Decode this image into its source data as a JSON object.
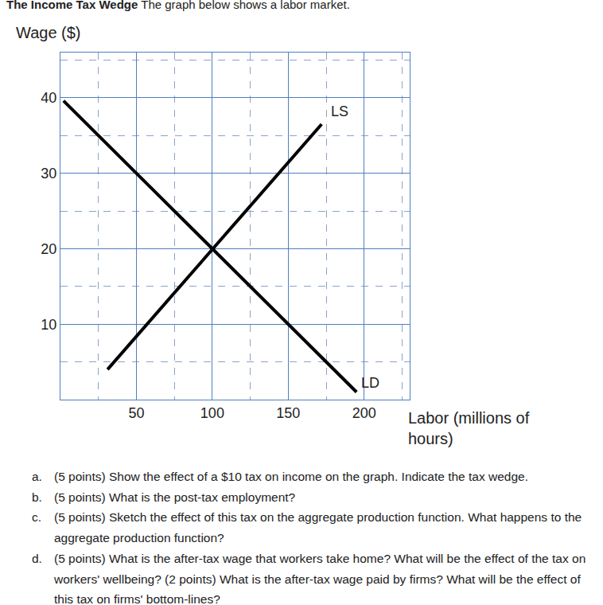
{
  "header": {
    "title": "The Income Tax Wedge",
    "text": "The graph below shows a labor market."
  },
  "chart_data": {
    "type": "line",
    "y_label": "Wage ($)",
    "x_label": "Labor (millions of hours)",
    "series": [
      {
        "name": "LS",
        "color": "#000000",
        "x": [
          31,
          172
        ],
        "values": [
          4,
          36.5
        ]
      },
      {
        "name": "LD",
        "color": "#000000",
        "x": [
          2,
          195
        ],
        "values": [
          39.6,
          1
        ]
      }
    ],
    "xlim": [
      0,
      230
    ],
    "ylim": [
      0,
      46
    ],
    "xticks": [
      50,
      100,
      150,
      200
    ],
    "yticks": [
      10,
      20,
      30,
      40
    ],
    "grid": true
  },
  "questions": [
    {
      "label": "a.",
      "text": "(5 points) Show the effect of a $10 tax on income on the graph. Indicate the tax wedge."
    },
    {
      "label": "b.",
      "text": "(5 points) What is the post-tax employment?"
    },
    {
      "label": "c.",
      "text": "(5 points) Sketch the effect of this tax on the aggregate production function. What happens to the aggregate production function?"
    },
    {
      "label": "d.",
      "text": "(5 points) What is the after-tax wage that workers take home? What will be the effect of the tax on workers' wellbeing? (2 points) What is the after-tax wage paid by firms? What will be the effect of this tax on firms' bottom-lines?"
    }
  ]
}
